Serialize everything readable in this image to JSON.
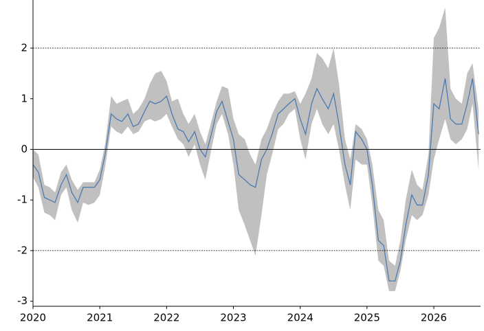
{
  "chart_data": {
    "type": "line",
    "x": [
      2020.0,
      2020.08,
      2020.17,
      2020.25,
      2020.33,
      2020.42,
      2020.5,
      2020.58,
      2020.67,
      2020.75,
      2020.83,
      2020.92,
      2021.0,
      2021.08,
      2021.17,
      2021.25,
      2021.33,
      2021.42,
      2021.5,
      2021.58,
      2021.67,
      2021.75,
      2021.83,
      2021.92,
      2022.0,
      2022.08,
      2022.17,
      2022.25,
      2022.33,
      2022.42,
      2022.5,
      2022.58,
      2022.67,
      2022.75,
      2022.83,
      2022.92,
      2023.0,
      2023.08,
      2023.17,
      2023.25,
      2023.33,
      2023.42,
      2023.5,
      2023.58,
      2023.67,
      2023.75,
      2023.83,
      2023.92,
      2024.0,
      2024.08,
      2024.17,
      2024.25,
      2024.33,
      2024.42,
      2024.5,
      2024.58,
      2024.67,
      2024.75,
      2024.83,
      2024.92,
      2025.0,
      2025.08,
      2025.17,
      2025.25,
      2025.33,
      2025.42,
      2025.5,
      2025.58,
      2025.67,
      2025.75,
      2025.83,
      2025.92,
      2026.0,
      2026.08,
      2026.17,
      2026.25,
      2026.33,
      2026.42,
      2026.5,
      2026.58,
      2026.67
    ],
    "series": [
      {
        "color": "#4a7ab0",
        "values": [
          -0.3,
          -0.45,
          -0.95,
          -1.0,
          -1.05,
          -0.7,
          -0.5,
          -0.85,
          -1.05,
          -0.75,
          -0.75,
          -0.75,
          -0.6,
          -0.1,
          0.7,
          0.6,
          0.55,
          0.7,
          0.45,
          0.5,
          0.75,
          0.95,
          0.9,
          0.95,
          1.05,
          0.7,
          0.4,
          0.35,
          0.15,
          0.35,
          0.0,
          -0.15,
          0.3,
          0.75,
          0.95,
          0.55,
          0.2,
          -0.5,
          -0.6,
          -0.7,
          -0.75,
          -0.2,
          0.0,
          0.3,
          0.7,
          0.8,
          0.9,
          1.0,
          0.6,
          0.3,
          0.9,
          1.2,
          1.0,
          0.8,
          1.1,
          0.5,
          -0.3,
          -0.7,
          0.35,
          0.2,
          0.0,
          -0.7,
          -1.8,
          -1.9,
          -2.6,
          -2.6,
          -2.2,
          -1.5,
          -0.9,
          -1.1,
          -1.1,
          -0.5,
          0.9,
          0.8,
          1.4,
          0.6,
          0.5,
          0.5,
          0.9,
          1.4,
          0.3
        ],
        "band_color": "#c0c0c0",
        "lower": [
          -0.55,
          -0.75,
          -1.25,
          -1.3,
          -1.4,
          -0.9,
          -0.75,
          -1.2,
          -1.45,
          -1.05,
          -1.1,
          -1.05,
          -0.9,
          -0.35,
          0.45,
          0.35,
          0.3,
          0.45,
          0.3,
          0.35,
          0.55,
          0.6,
          0.55,
          0.6,
          0.7,
          0.45,
          0.2,
          0.1,
          -0.15,
          0.1,
          -0.3,
          -0.6,
          0.0,
          0.5,
          0.7,
          0.3,
          -0.3,
          -1.2,
          -1.5,
          -1.8,
          -2.1,
          -1.3,
          -0.5,
          -0.1,
          0.4,
          0.5,
          0.7,
          0.8,
          0.2,
          -0.2,
          0.5,
          0.8,
          0.5,
          0.3,
          0.5,
          0.0,
          -0.7,
          -1.2,
          -0.2,
          -0.3,
          -0.3,
          -1.1,
          -2.2,
          -2.3,
          -2.8,
          -2.8,
          -2.4,
          -1.8,
          -1.3,
          -1.4,
          -1.3,
          -0.9,
          -0.2,
          0.2,
          0.6,
          0.2,
          0.1,
          0.2,
          0.4,
          0.9,
          -0.4
        ],
        "upper": [
          0.0,
          -0.1,
          -0.7,
          -0.75,
          -0.85,
          -0.45,
          -0.3,
          -0.6,
          -0.8,
          -0.65,
          -0.65,
          -0.65,
          -0.4,
          0.1,
          1.05,
          0.9,
          0.95,
          1.0,
          0.7,
          0.8,
          1.0,
          1.3,
          1.5,
          1.55,
          1.35,
          0.95,
          1.0,
          0.7,
          0.5,
          0.7,
          0.35,
          0.1,
          0.55,
          0.95,
          1.25,
          1.2,
          0.6,
          0.3,
          0.2,
          -0.1,
          -0.3,
          0.2,
          0.4,
          0.7,
          0.95,
          1.1,
          1.1,
          1.15,
          0.9,
          1.1,
          1.4,
          1.9,
          1.8,
          1.6,
          2.0,
          1.3,
          0.2,
          -0.2,
          0.5,
          0.4,
          0.2,
          -0.3,
          -1.2,
          -1.4,
          -2.2,
          -2.3,
          -1.8,
          -1.0,
          -0.4,
          -0.7,
          -0.8,
          -0.1,
          2.2,
          2.4,
          2.8,
          1.2,
          1.0,
          0.9,
          1.5,
          1.7,
          0.8
        ]
      }
    ],
    "xlim": [
      2020,
      2026.7
    ],
    "xticks": [
      2020,
      2021,
      2022,
      2023,
      2024,
      2025,
      2026
    ],
    "ylim": [
      -3.1,
      2.95
    ],
    "yticks": [
      -3,
      -2,
      -1,
      0,
      1,
      2
    ],
    "hlines": [
      {
        "y": 2,
        "style": "dashed"
      },
      {
        "y": 0,
        "style": "solid"
      },
      {
        "y": -2,
        "style": "dashed"
      }
    ]
  }
}
